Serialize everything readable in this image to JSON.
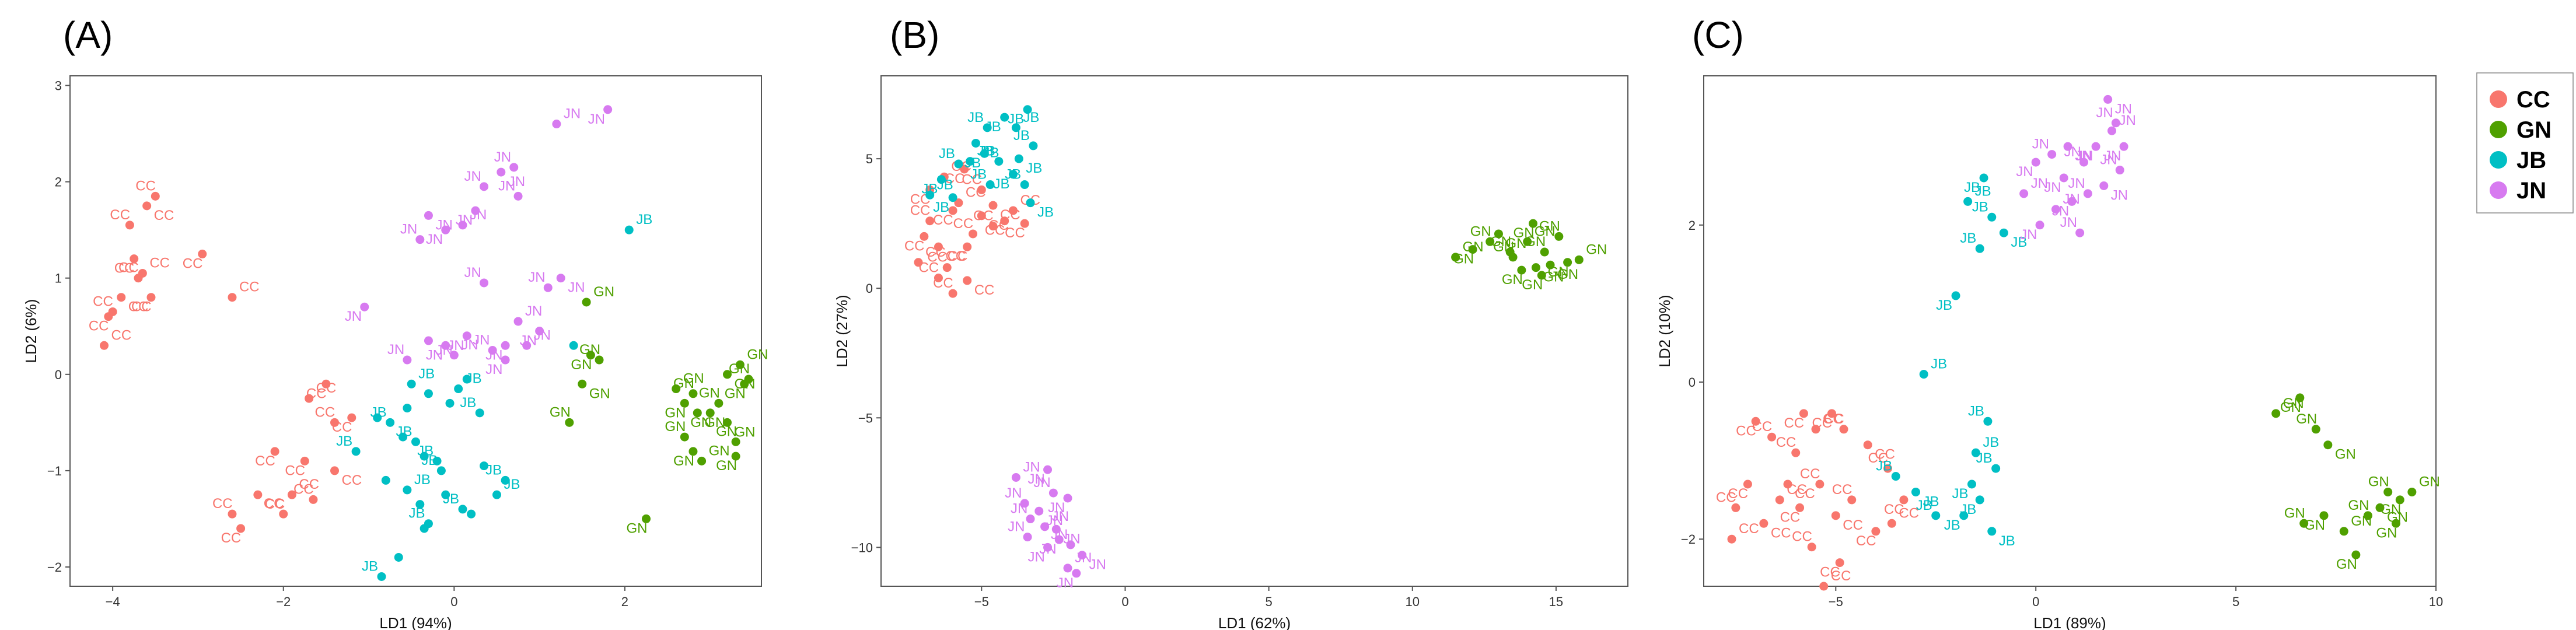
{
  "colors": {
    "CC": "#F8766D",
    "GN": "#4FA000",
    "JB": "#00BFC4",
    "JN": "#D77AF0"
  },
  "legend": {
    "items": [
      {
        "name": "CC",
        "label": "CC"
      },
      {
        "name": "GN",
        "label": "GN"
      },
      {
        "name": "JB",
        "label": "JB"
      },
      {
        "name": "JN",
        "label": "JN"
      }
    ]
  },
  "chart_data": [
    {
      "type": "scatter",
      "panel": "(A)",
      "xlabel": "LD1 (94%)",
      "ylabel": "LD2 (6%)",
      "xlim": [
        -4.5,
        3.6
      ],
      "ylim": [
        -2.2,
        3.1
      ],
      "xticks": [
        -4,
        -2,
        0,
        2
      ],
      "yticks": [
        -2,
        -1,
        0,
        1,
        2,
        3
      ],
      "series": [
        {
          "name": "CC",
          "points": [
            [
              -4.1,
              0.3
            ],
            [
              -4.05,
              0.6
            ],
            [
              -4.0,
              0.65
            ],
            [
              -3.9,
              0.8
            ],
            [
              -3.7,
              1.0
            ],
            [
              -3.75,
              1.2
            ],
            [
              -3.65,
              1.05
            ],
            [
              -3.55,
              0.8
            ],
            [
              -3.8,
              1.55
            ],
            [
              -3.6,
              1.75
            ],
            [
              -3.5,
              1.85
            ],
            [
              -2.95,
              1.25
            ],
            [
              -2.6,
              0.8
            ],
            [
              -2.5,
              -1.6
            ],
            [
              -2.6,
              -1.45
            ],
            [
              -2.3,
              -1.25
            ],
            [
              -2.0,
              -1.45
            ],
            [
              -2.1,
              -0.8
            ],
            [
              -1.9,
              -1.25
            ],
            [
              -1.75,
              -0.9
            ],
            [
              -1.65,
              -1.3
            ],
            [
              -1.4,
              -1.0
            ],
            [
              -1.4,
              -0.5
            ],
            [
              -1.2,
              -0.45
            ],
            [
              -1.7,
              -0.25
            ],
            [
              -1.5,
              -0.1
            ]
          ],
          "label_every": true
        },
        {
          "name": "GN",
          "points": [
            [
              1.55,
              0.75
            ],
            [
              1.6,
              0.2
            ],
            [
              1.7,
              0.15
            ],
            [
              1.5,
              -0.1
            ],
            [
              1.35,
              -0.5
            ],
            [
              2.25,
              -1.5
            ],
            [
              2.6,
              -0.15
            ],
            [
              2.7,
              -0.3
            ],
            [
              2.8,
              -0.2
            ],
            [
              2.85,
              -0.4
            ],
            [
              2.7,
              -0.65
            ],
            [
              2.8,
              -0.8
            ],
            [
              2.9,
              -0.9
            ],
            [
              3.0,
              -0.4
            ],
            [
              3.1,
              -0.3
            ],
            [
              3.2,
              -0.5
            ],
            [
              3.3,
              -0.7
            ],
            [
              3.3,
              -0.85
            ],
            [
              3.35,
              0.1
            ],
            [
              3.4,
              -0.1
            ],
            [
              3.45,
              -0.05
            ],
            [
              3.2,
              0.0
            ]
          ],
          "label_every": true
        },
        {
          "name": "JB",
          "points": [
            [
              2.05,
              1.5
            ],
            [
              1.4,
              0.3
            ],
            [
              -1.15,
              -0.8
            ],
            [
              -0.9,
              -0.45
            ],
            [
              -0.75,
              -0.5
            ],
            [
              -0.55,
              -0.35
            ],
            [
              -0.5,
              -0.1
            ],
            [
              -0.6,
              -0.65
            ],
            [
              -0.45,
              -0.7
            ],
            [
              -0.35,
              -0.85
            ],
            [
              -0.2,
              -0.9
            ],
            [
              -0.8,
              -1.1
            ],
            [
              -0.55,
              -1.2
            ],
            [
              -0.4,
              -1.35
            ],
            [
              -0.3,
              -1.55
            ],
            [
              -0.1,
              -1.25
            ],
            [
              -0.15,
              -1.0
            ],
            [
              -0.05,
              -0.3
            ],
            [
              0.05,
              -0.15
            ],
            [
              0.15,
              -0.05
            ],
            [
              0.3,
              -0.4
            ],
            [
              0.35,
              -0.95
            ],
            [
              0.6,
              -1.1
            ],
            [
              0.2,
              -1.45
            ],
            [
              0.5,
              -1.25
            ],
            [
              -0.65,
              -1.9
            ],
            [
              -0.85,
              -2.1
            ],
            [
              -0.35,
              -1.6
            ],
            [
              0.1,
              -1.4
            ],
            [
              -0.3,
              -0.2
            ]
          ],
          "label_every": false
        },
        {
          "name": "JN",
          "points": [
            [
              1.2,
              2.6
            ],
            [
              1.8,
              2.75
            ],
            [
              0.7,
              2.15
            ],
            [
              0.55,
              2.1
            ],
            [
              0.35,
              1.95
            ],
            [
              0.25,
              1.7
            ],
            [
              0.1,
              1.55
            ],
            [
              -0.1,
              1.5
            ],
            [
              0.75,
              1.85
            ],
            [
              -0.3,
              1.65
            ],
            [
              -0.4,
              1.4
            ],
            [
              -1.05,
              0.7
            ],
            [
              0.75,
              0.55
            ],
            [
              1.0,
              0.45
            ],
            [
              1.1,
              0.9
            ],
            [
              1.25,
              1.0
            ],
            [
              0.35,
              0.95
            ],
            [
              0.15,
              0.4
            ],
            [
              0.0,
              0.2
            ],
            [
              -0.1,
              0.3
            ],
            [
              -0.55,
              0.15
            ],
            [
              -0.3,
              0.35
            ],
            [
              0.45,
              0.25
            ],
            [
              0.6,
              0.3
            ],
            [
              0.85,
              0.3
            ],
            [
              0.6,
              0.15
            ]
          ],
          "label_every": true
        }
      ]
    },
    {
      "type": "scatter",
      "panel": "(B)",
      "xlabel": "LD1 (62%)",
      "ylabel": "LD2 (27%)",
      "xlim": [
        -8.5,
        17.5
      ],
      "ylim": [
        -11.5,
        8.2
      ],
      "xticks": [
        -5,
        0,
        5,
        10,
        15
      ],
      "yticks": [
        -10,
        -5,
        0,
        5
      ],
      "series": [
        {
          "name": "CC",
          "points": [
            [
              -7.2,
              1.0
            ],
            [
              -7.0,
              2.0
            ],
            [
              -6.8,
              2.6
            ],
            [
              -6.5,
              1.6
            ],
            [
              -6.2,
              0.8
            ],
            [
              -6.0,
              3.0
            ],
            [
              -5.8,
              3.3
            ],
            [
              -5.5,
              1.6
            ],
            [
              -5.3,
              2.1
            ],
            [
              -5.0,
              2.8
            ],
            [
              -4.6,
              2.4
            ],
            [
              -4.2,
              2.6
            ],
            [
              -3.9,
              3.0
            ],
            [
              -3.5,
              2.5
            ],
            [
              -6.5,
              0.4
            ],
            [
              -5.5,
              0.3
            ],
            [
              -6.0,
              -0.2
            ],
            [
              -6.8,
              3.8
            ],
            [
              -6.3,
              4.3
            ],
            [
              -5.6,
              4.6
            ],
            [
              -5.0,
              3.8
            ],
            [
              -4.6,
              3.2
            ]
          ],
          "label_every": true
        },
        {
          "name": "GN",
          "points": [
            [
              11.5,
              1.2
            ],
            [
              12.1,
              1.5
            ],
            [
              12.7,
              1.8
            ],
            [
              13.0,
              2.1
            ],
            [
              13.4,
              1.4
            ],
            [
              13.8,
              0.7
            ],
            [
              14.0,
              1.8
            ],
            [
              14.2,
              2.5
            ],
            [
              14.6,
              1.4
            ],
            [
              14.8,
              0.9
            ],
            [
              15.1,
              2.0
            ],
            [
              15.4,
              1.0
            ],
            [
              15.8,
              1.1
            ],
            [
              14.5,
              0.5
            ],
            [
              13.5,
              1.2
            ],
            [
              14.3,
              0.8
            ]
          ],
          "label_every": true
        },
        {
          "name": "JB",
          "points": [
            [
              -6.8,
              3.6
            ],
            [
              -6.4,
              4.2
            ],
            [
              -5.8,
              4.8
            ],
            [
              -5.2,
              5.6
            ],
            [
              -4.8,
              6.2
            ],
            [
              -4.2,
              6.6
            ],
            [
              -3.8,
              6.2
            ],
            [
              -3.4,
              6.9
            ],
            [
              -3.2,
              5.5
            ],
            [
              -3.7,
              5.0
            ],
            [
              -4.4,
              4.9
            ],
            [
              -4.9,
              5.2
            ],
            [
              -5.4,
              4.9
            ],
            [
              -3.9,
              4.4
            ],
            [
              -3.5,
              4.0
            ],
            [
              -3.3,
              3.3
            ],
            [
              -4.7,
              4.0
            ],
            [
              -6.0,
              3.5
            ]
          ],
          "label_every": true
        },
        {
          "name": "JN",
          "points": [
            [
              -3.8,
              -7.3
            ],
            [
              -2.7,
              -7.0
            ],
            [
              -3.5,
              -8.3
            ],
            [
              -3.0,
              -8.6
            ],
            [
              -2.5,
              -7.9
            ],
            [
              -2.0,
              -8.1
            ],
            [
              -2.8,
              -9.2
            ],
            [
              -2.3,
              -9.7
            ],
            [
              -1.9,
              -9.9
            ],
            [
              -1.5,
              -10.3
            ],
            [
              -3.4,
              -9.6
            ],
            [
              -2.7,
              -10.0
            ],
            [
              -2.0,
              -10.8
            ],
            [
              -1.7,
              -11.0
            ],
            [
              -3.3,
              -8.9
            ],
            [
              -2.4,
              -9.3
            ]
          ],
          "label_every": true
        }
      ]
    },
    {
      "type": "scatter",
      "panel": "(C)",
      "xlabel": "LD1 (89%)",
      "ylabel": "LD2 (10%)",
      "xlim": [
        -8.3,
        10.0
      ],
      "ylim": [
        -2.6,
        3.9
      ],
      "xticks": [
        -5,
        0,
        5,
        10
      ],
      "yticks": [
        -2,
        0,
        2
      ],
      "series": [
        {
          "name": "CC",
          "points": [
            [
              -7.6,
              -2.0
            ],
            [
              -7.0,
              -0.5
            ],
            [
              -6.6,
              -0.7
            ],
            [
              -6.2,
              -1.3
            ],
            [
              -6.0,
              -0.9
            ],
            [
              -5.8,
              -0.4
            ],
            [
              -5.5,
              -0.6
            ],
            [
              -5.1,
              -0.4
            ],
            [
              -4.8,
              -0.6
            ],
            [
              -4.2,
              -0.8
            ],
            [
              -3.7,
              -1.1
            ],
            [
              -3.3,
              -1.5
            ],
            [
              -3.6,
              -1.8
            ],
            [
              -4.0,
              -1.9
            ],
            [
              -4.6,
              -1.5
            ],
            [
              -5.0,
              -1.7
            ],
            [
              -5.4,
              -1.3
            ],
            [
              -5.9,
              -1.6
            ],
            [
              -6.4,
              -1.5
            ],
            [
              -7.2,
              -1.3
            ],
            [
              -7.5,
              -1.6
            ],
            [
              -6.8,
              -1.8
            ],
            [
              -5.6,
              -2.1
            ],
            [
              -4.9,
              -2.3
            ],
            [
              -5.3,
              -2.6
            ]
          ],
          "label_every": true
        },
        {
          "name": "GN",
          "points": [
            [
              6.0,
              -0.4
            ],
            [
              6.6,
              -0.2
            ],
            [
              7.0,
              -0.6
            ],
            [
              7.3,
              -0.8
            ],
            [
              6.7,
              -1.8
            ],
            [
              7.2,
              -1.7
            ],
            [
              7.7,
              -1.9
            ],
            [
              8.0,
              -2.2
            ],
            [
              8.3,
              -1.7
            ],
            [
              8.6,
              -1.6
            ],
            [
              8.8,
              -1.4
            ],
            [
              9.1,
              -1.5
            ],
            [
              9.4,
              -1.4
            ],
            [
              9.0,
              -1.8
            ]
          ],
          "label_every": true
        },
        {
          "name": "JB",
          "points": [
            [
              -2.8,
              0.1
            ],
            [
              -2.0,
              1.1
            ],
            [
              -3.5,
              -1.2
            ],
            [
              -3.0,
              -1.4
            ],
            [
              -2.5,
              -1.7
            ],
            [
              -1.8,
              -1.7
            ],
            [
              -1.5,
              -0.9
            ],
            [
              -1.6,
              -1.3
            ],
            [
              -1.2,
              -0.5
            ],
            [
              -1.1,
              -1.9
            ],
            [
              -1.0,
              -1.1
            ],
            [
              -1.4,
              -1.5
            ],
            [
              -1.7,
              2.3
            ],
            [
              -1.3,
              2.6
            ],
            [
              -1.1,
              2.1
            ],
            [
              -0.8,
              1.9
            ],
            [
              -1.4,
              1.7
            ]
          ],
          "label_every": true
        },
        {
          "name": "JN",
          "points": [
            [
              -0.3,
              2.4
            ],
            [
              0.0,
              2.8
            ],
            [
              0.4,
              2.9
            ],
            [
              0.8,
              3.0
            ],
            [
              1.2,
              2.8
            ],
            [
              1.5,
              3.0
            ],
            [
              1.9,
              3.2
            ],
            [
              2.2,
              3.0
            ],
            [
              2.1,
              2.7
            ],
            [
              1.7,
              2.5
            ],
            [
              1.3,
              2.4
            ],
            [
              0.9,
              2.3
            ],
            [
              0.5,
              2.2
            ],
            [
              0.1,
              2.0
            ],
            [
              1.1,
              1.9
            ],
            [
              1.8,
              3.6
            ],
            [
              2.0,
              3.3
            ],
            [
              0.7,
              2.6
            ]
          ],
          "label_every": true
        }
      ]
    }
  ]
}
